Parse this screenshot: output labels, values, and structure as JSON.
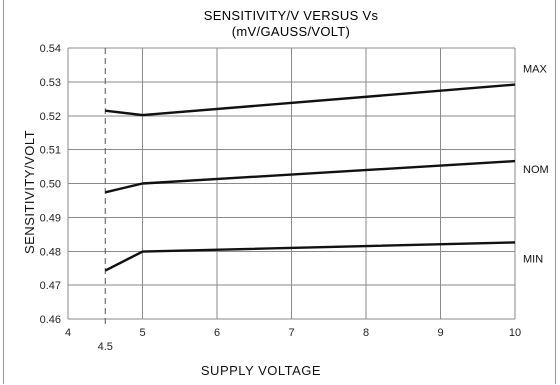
{
  "chart_data": {
    "type": "line",
    "title": "SENSITIVITY/V VERSUS Vs",
    "subtitle": "(mV/GAUSS/VOLT)",
    "xlabel": "SUPPLY VOLTAGE",
    "ylabel": "SENSITIVITY/VOLT",
    "xlim": [
      4,
      10
    ],
    "ylim": [
      0.46,
      0.54
    ],
    "x_ticks": [
      "4",
      "5",
      "6",
      "7",
      "8",
      "9",
      "10"
    ],
    "x_tick_values": [
      4,
      5,
      6,
      7,
      8,
      9,
      10
    ],
    "y_ticks": [
      "0.46",
      "0.47",
      "0.48",
      "0.49",
      "0.50",
      "0.51",
      "0.52",
      "0.53",
      "0.54"
    ],
    "y_tick_values": [
      0.46,
      0.47,
      0.48,
      0.49,
      0.5,
      0.51,
      0.52,
      0.53,
      0.54
    ],
    "marker_line": {
      "x": 4.5,
      "label": "4.5"
    },
    "grid": true,
    "series": [
      {
        "name": "MAX",
        "x": [
          4.5,
          5,
          10
        ],
        "y": [
          0.5215,
          0.5202,
          0.5292
        ]
      },
      {
        "name": "NOM",
        "x": [
          4.5,
          5,
          10
        ],
        "y": [
          0.4974,
          0.5,
          0.5066
        ]
      },
      {
        "name": "MIN",
        "x": [
          4.5,
          5,
          10
        ],
        "y": [
          0.4743,
          0.4799,
          0.4826
        ]
      }
    ]
  }
}
